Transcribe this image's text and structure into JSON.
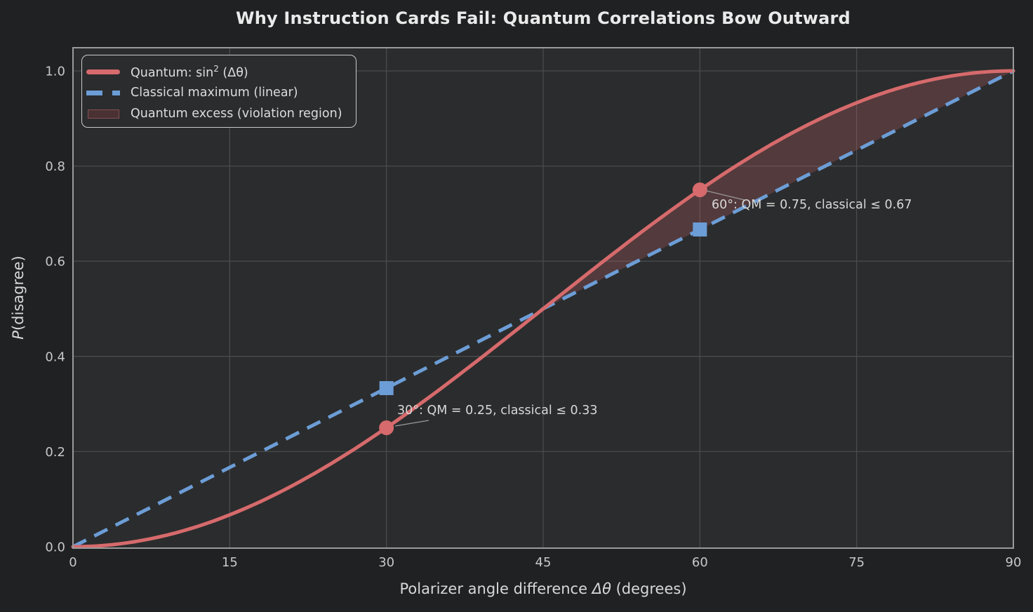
{
  "title": "Why Instruction Cards Fail: Quantum Correlations Bow Outward",
  "colors": {
    "quantum_line": "#d66a6c",
    "classical_line": "#6c9dd6",
    "violation_fill": "rgba(214,106,108,0.24)",
    "violation_patch": "#4a3133",
    "figure_background": "#202122",
    "axes_background": "#2b2c2d",
    "grid": "#494b4d",
    "spine": "#9a9a9a",
    "text": "#d8d8d8",
    "tick_text": "#c8c8c8",
    "title_text": "#eaeaea",
    "leader_line": "#9b9b9b"
  },
  "chart_data": {
    "type": "line",
    "title": "Why Instruction Cards Fail: Quantum Correlations Bow Outward",
    "xlabel": "Polarizer angle difference Δθ (degrees)",
    "xlabel_prefix": "Polarizer angle difference ",
    "xlabel_math": "Δθ",
    "xlabel_suffix": " (degrees)",
    "ylabel": "P(disagree)",
    "ylabel_math": "P",
    "ylabel_suffix": "(disagree)",
    "xlim": [
      0,
      90
    ],
    "ylim": [
      0,
      1.05
    ],
    "xticks": [
      "0",
      "15",
      "30",
      "45",
      "60",
      "75",
      "90"
    ],
    "yticks": [
      "0.0",
      "0.2",
      "0.4",
      "0.6",
      "0.8",
      "1.0"
    ],
    "grid": true,
    "legend": {
      "position": "upper left",
      "entries": [
        {
          "label": "Quantum: sin² (Δθ)",
          "label_prefix": "Quantum: sin",
          "label_sup": "2",
          "label_suffix": " (Δθ)",
          "swatch": "line-solid",
          "color": "#d66a6c"
        },
        {
          "label": "Classical maximum (linear)",
          "swatch": "line-dashed",
          "color": "#6c9dd6"
        },
        {
          "label": "Quantum excess (violation region)",
          "swatch": "patch",
          "color": "#4a3133"
        }
      ]
    },
    "series": [
      {
        "name": "Quantum: sin²(Δθ)",
        "formula": "sin^2(Δθ)",
        "style": "solid",
        "color": "#d66a6c",
        "linewidth": 5,
        "x": [
          0,
          5,
          10,
          15,
          20,
          25,
          30,
          35,
          40,
          45,
          50,
          55,
          60,
          65,
          70,
          75,
          80,
          85,
          90
        ],
        "y": [
          0,
          0.0076,
          0.0302,
          0.067,
          0.117,
          0.1786,
          0.25,
          0.329,
          0.4132,
          0.5,
          0.5868,
          0.671,
          0.75,
          0.8214,
          0.883,
          0.933,
          0.9698,
          0.9924,
          1.0
        ]
      },
      {
        "name": "Classical maximum (linear)",
        "style": "dashed",
        "color": "#6c9dd6",
        "linewidth": 5,
        "x": [
          0,
          90
        ],
        "y": [
          0,
          1
        ]
      }
    ],
    "violation_region": {
      "x_start": 45,
      "x_end": 90,
      "fill": "rgba(214,106,108,0.24)"
    },
    "markers": [
      {
        "x": 30,
        "y": 0.25,
        "shape": "circle",
        "color": "#d66a6c"
      },
      {
        "x": 30,
        "y": 0.3333,
        "shape": "square",
        "color": "#6c9dd6"
      },
      {
        "x": 60,
        "y": 0.75,
        "shape": "circle",
        "color": "#d66a6c"
      },
      {
        "x": 60,
        "y": 0.6667,
        "shape": "square",
        "color": "#6c9dd6"
      }
    ],
    "annotations": [
      {
        "text": "30°: QM = 0.25, classical ≤ 0.33",
        "x": 30,
        "y": 0.25
      },
      {
        "text": "60°: QM = 0.75, classical ≤ 0.67",
        "x": 60,
        "y": 0.75
      }
    ]
  }
}
